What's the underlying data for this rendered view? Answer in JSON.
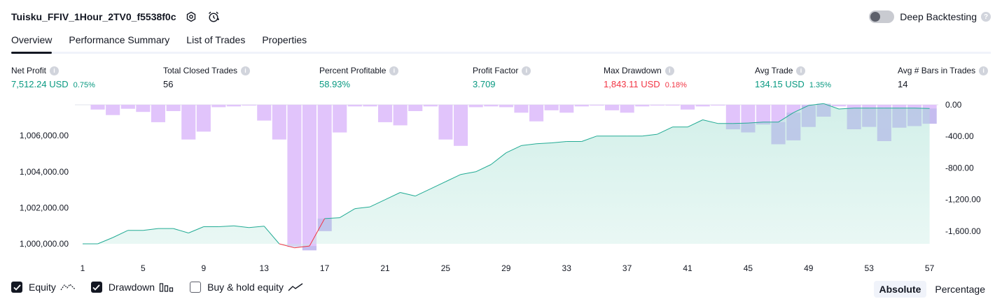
{
  "header": {
    "title": "Tuisku_FFIV_1Hour_2TV0_f5538f0c",
    "deep_backtesting_label": "Deep Backtesting",
    "help_glyph": "?"
  },
  "tabs": [
    {
      "label": "Overview",
      "active": true
    },
    {
      "label": "Performance Summary",
      "active": false
    },
    {
      "label": "List of Trades",
      "active": false
    },
    {
      "label": "Properties",
      "active": false
    }
  ],
  "stats": {
    "net_profit": {
      "label": "Net Profit",
      "value": "7,512.24 USD",
      "pct": "0.75%"
    },
    "total_closed_trades": {
      "label": "Total Closed Trades",
      "value": "56"
    },
    "percent_profitable": {
      "label": "Percent Profitable",
      "value": "58.93%"
    },
    "profit_factor": {
      "label": "Profit Factor",
      "value": "3.709"
    },
    "max_drawdown": {
      "label": "Max Drawdown",
      "value": "1,843.11 USD",
      "pct": "0.18%"
    },
    "avg_trade": {
      "label": "Avg Trade",
      "value": "134.15 USD",
      "pct": "1.35%"
    },
    "avg_bars": {
      "label": "Avg # Bars in Trades",
      "value": "14"
    }
  },
  "legend": {
    "equity_label": "Equity",
    "drawdown_label": "Drawdown",
    "buy_hold_label": "Buy & hold equity",
    "equity_checked": true,
    "drawdown_checked": true,
    "buy_hold_checked": false
  },
  "mode": {
    "absolute_label": "Absolute",
    "percentage_label": "Percentage",
    "selected": "Absolute"
  },
  "colors": {
    "equity_line": "#22ab94",
    "equity_fill": "#c8ece4",
    "drawdown_bar": "#e1c4fb",
    "loss_segment": "#f23645",
    "overlap_bar": "#aeb6e5"
  },
  "chart_data": {
    "type": "area",
    "x_ticks": [
      "1",
      "5",
      "9",
      "13",
      "17",
      "21",
      "25",
      "29",
      "33",
      "37",
      "41",
      "45",
      "49",
      "53",
      "57"
    ],
    "left_axis": {
      "ticks": [
        "1,000,000.00",
        "1,002,000.00",
        "1,004,000.00",
        "1,006,000.00"
      ],
      "range": [
        999600,
        1007900
      ]
    },
    "right_axis": {
      "ticks": [
        "0.00",
        "-400.00",
        "-800.00",
        "-1,200.00",
        "-1,600.00"
      ],
      "range": [
        -1843.11,
        0
      ]
    },
    "trades": [
      1,
      2,
      3,
      4,
      5,
      6,
      7,
      8,
      9,
      10,
      11,
      12,
      13,
      14,
      15,
      16,
      17,
      18,
      19,
      20,
      21,
      22,
      23,
      24,
      25,
      26,
      27,
      28,
      29,
      30,
      31,
      32,
      33,
      34,
      35,
      36,
      37,
      38,
      39,
      40,
      41,
      42,
      43,
      44,
      45,
      46,
      47,
      48,
      49,
      50,
      51,
      52,
      53,
      54,
      55,
      56,
      57
    ],
    "equity": [
      1000000,
      1000000,
      1000350,
      1000750,
      1000750,
      1000850,
      1000850,
      1000600,
      1000950,
      1000950,
      1001000,
      1000900,
      1000980,
      1000000,
      999780,
      999880,
      1001400,
      1001450,
      1001950,
      1002050,
      1002450,
      1002850,
      1002650,
      1003050,
      1003450,
      1003850,
      1004000,
      1004400,
      1005050,
      1005450,
      1005550,
      1005600,
      1005680,
      1005680,
      1005980,
      1005980,
      1005980,
      1005980,
      1006080,
      1006480,
      1006480,
      1006880,
      1006680,
      1006680,
      1006700,
      1006750,
      1006750,
      1007280,
      1007680,
      1007780,
      1007480,
      1007530,
      1007530,
      1007530,
      1007530,
      1007530,
      1007512
    ],
    "drawdown": [
      0,
      -60,
      -130,
      -50,
      -90,
      -220,
      -80,
      -440,
      -340,
      -30,
      -20,
      -10,
      -200,
      -440,
      -1800,
      -1843,
      -1600,
      -350,
      -20,
      -20,
      -220,
      -260,
      -80,
      -20,
      -440,
      -520,
      -30,
      -20,
      -30,
      -100,
      -210,
      -70,
      -100,
      -20,
      -10,
      -70,
      -100,
      -20,
      -10,
      -10,
      -60,
      -20,
      -10,
      -310,
      -350,
      -250,
      -500,
      -450,
      -280,
      -150,
      -20,
      -310,
      -280,
      -460,
      -290,
      -270,
      -240
    ]
  }
}
